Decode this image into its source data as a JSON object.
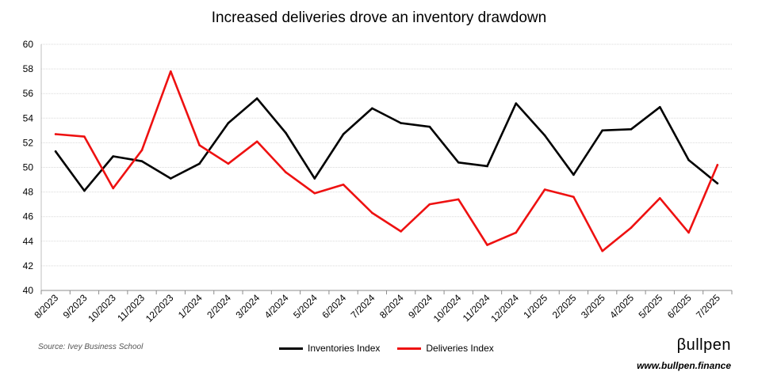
{
  "chart_data": {
    "type": "line",
    "title": "Increased deliveries drove an inventory drawdown",
    "categories": [
      "8/2023",
      "9/2023",
      "10/2023",
      "11/2023",
      "12/2023",
      "1/2024",
      "2/2024",
      "3/2024",
      "4/2024",
      "5/2024",
      "6/2024",
      "7/2024",
      "8/2024",
      "9/2024",
      "10/2024",
      "11/2024",
      "12/2024",
      "1/2025",
      "2/2025",
      "3/2025",
      "4/2025",
      "5/2025",
      "6/2025",
      "7/2025"
    ],
    "series": [
      {
        "name": "Inventories Index",
        "color": "#000000",
        "values": [
          51.3,
          48.1,
          50.9,
          50.5,
          49.1,
          50.3,
          53.6,
          55.6,
          52.8,
          49.1,
          52.7,
          54.8,
          53.6,
          53.3,
          50.4,
          50.1,
          55.2,
          52.6,
          49.4,
          53.0,
          53.1,
          54.9,
          50.6,
          48.7
        ]
      },
      {
        "name": "Deliveries Index",
        "color": "#ee1111",
        "values": [
          52.7,
          52.5,
          48.3,
          51.4,
          57.8,
          51.8,
          50.3,
          52.1,
          49.6,
          47.9,
          48.6,
          46.3,
          44.8,
          47.0,
          47.4,
          43.7,
          44.7,
          48.2,
          47.6,
          43.2,
          45.1,
          47.5,
          44.7,
          50.2
        ]
      }
    ],
    "ylim": [
      40,
      60
    ],
    "yticks": [
      40,
      42,
      44,
      46,
      48,
      50,
      52,
      54,
      56,
      58,
      60
    ],
    "grid": true,
    "legend": "bottom-center"
  },
  "source": "Source: Ivey Business School",
  "brand": "βullpen",
  "url": "www.bullpen.finance"
}
